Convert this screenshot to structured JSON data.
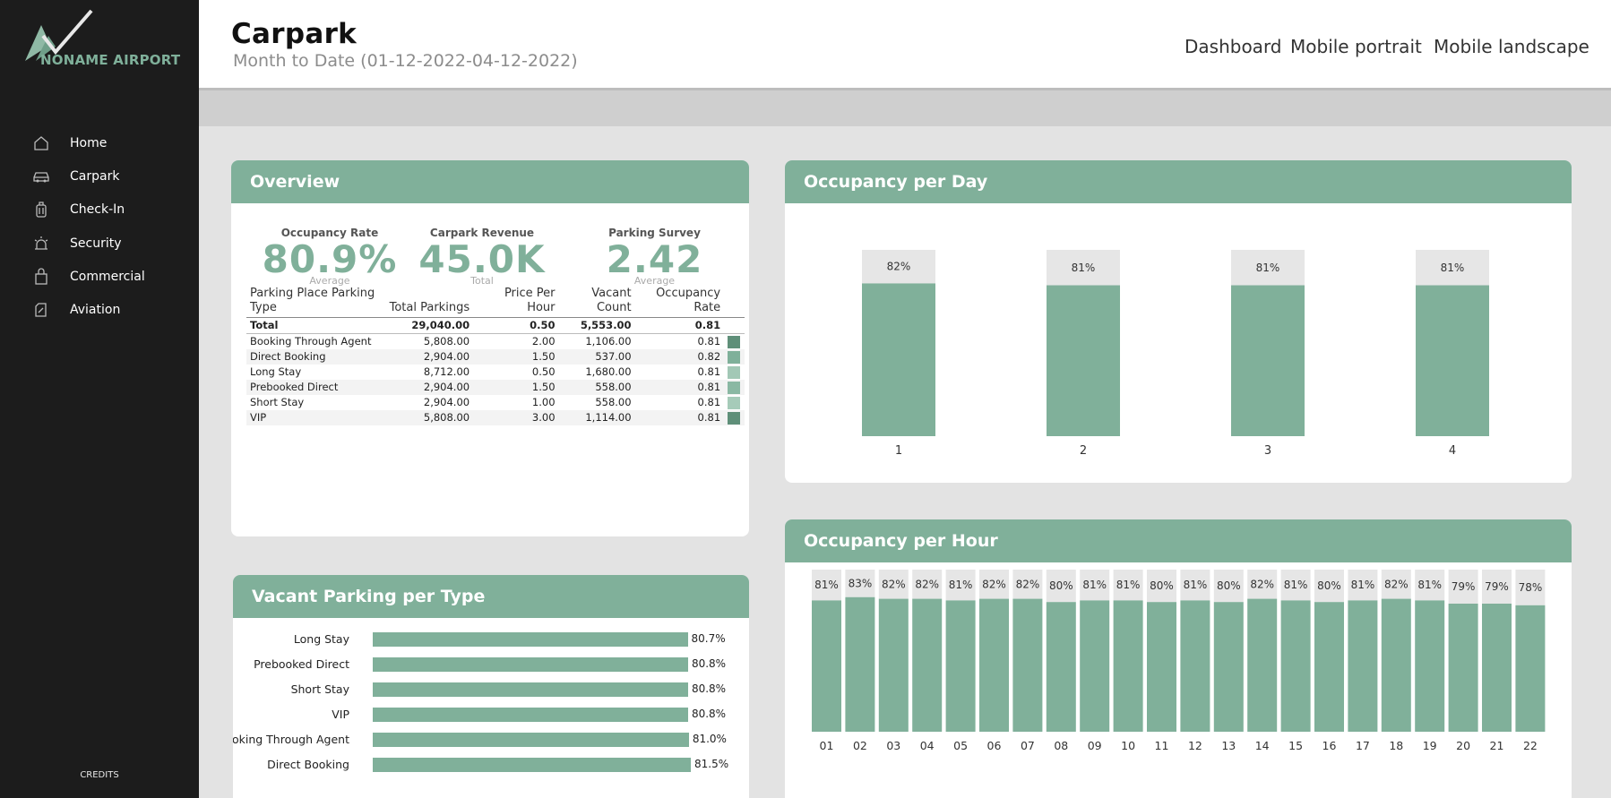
{
  "brand": {
    "logo_text": "NONAME AIRPORT",
    "accent": "#80b09a"
  },
  "sidebar": {
    "items": [
      {
        "label": "Home",
        "icon": "home-icon"
      },
      {
        "label": "Carpark",
        "icon": "car-icon"
      },
      {
        "label": "Check-In",
        "icon": "luggage-icon"
      },
      {
        "label": "Security",
        "icon": "alarm-light-icon"
      },
      {
        "label": "Commercial",
        "icon": "shopping-bag-icon"
      },
      {
        "label": "Aviation",
        "icon": "plane-ticket-icon"
      }
    ],
    "credits": "CREDITS"
  },
  "header": {
    "title": "Carpark",
    "subtitle": "Month to Date (01-12-2022-04-12-2022)",
    "links": [
      "Dashboard",
      "Mobile portrait",
      "Mobile landscape"
    ]
  },
  "overview": {
    "title": "Overview",
    "kpis": [
      {
        "label": "Occupancy Rate",
        "value": "80.9%",
        "sub": "Average"
      },
      {
        "label": "Carpark Revenue",
        "value": "45.0K",
        "sub": "Total"
      },
      {
        "label": "Parking Survey",
        "value": "2.42",
        "sub": "Average"
      }
    ],
    "table": {
      "columns": [
        "Parking Place Parking Type",
        "Total Parkings",
        "Price Per Hour",
        "Vacant Count",
        "Occupancy Rate"
      ],
      "total": [
        "Total",
        "29,040.00",
        "0.50",
        "5,553.00",
        "0.81"
      ],
      "rows": [
        [
          "Booking Through Agent",
          "5,808.00",
          "2.00",
          "1,106.00",
          "0.81"
        ],
        [
          "Direct Booking",
          "2,904.00",
          "1.50",
          "537.00",
          "0.82"
        ],
        [
          "Long Stay",
          "8,712.00",
          "0.50",
          "1,680.00",
          "0.81"
        ],
        [
          "Prebooked Direct",
          "2,904.00",
          "1.50",
          "558.00",
          "0.81"
        ],
        [
          "Short Stay",
          "2,904.00",
          "1.00",
          "558.00",
          "0.81"
        ],
        [
          "VIP",
          "5,808.00",
          "3.00",
          "1,114.00",
          "0.81"
        ]
      ],
      "row_colors": [
        "#5f8f79",
        "#7fb09a",
        "#a2c8b6",
        "#8ab8a3",
        "#a6cbb9",
        "#5f8f79"
      ]
    }
  },
  "vacant": {
    "title": "Vacant Parking per Type",
    "chart_data": {
      "type": "bar",
      "orientation": "horizontal",
      "categories": [
        "Long Stay",
        "Prebooked Direct",
        "Short Stay",
        "VIP",
        "Booking Through Agent",
        "Direct Booking"
      ],
      "values": [
        80.7,
        80.8,
        80.8,
        80.8,
        81.0,
        81.5
      ],
      "labels": [
        "80.7%",
        "80.8%",
        "80.8%",
        "80.8%",
        "81.0%",
        "81.5%"
      ]
    }
  },
  "occ_day": {
    "title": "Occupancy per Day",
    "chart_data": {
      "type": "bar",
      "stacked_100": true,
      "categories": [
        "1",
        "2",
        "3",
        "4"
      ],
      "values": [
        82,
        81,
        81,
        81
      ],
      "labels": [
        "82%",
        "81%",
        "81%",
        "81%"
      ],
      "colors": {
        "occupied": "#80b09a",
        "remainder": "#e6e6e6"
      }
    }
  },
  "occ_hour": {
    "title": "Occupancy per Hour",
    "chart_data": {
      "type": "bar",
      "stacked_100": true,
      "categories": [
        "01",
        "02",
        "03",
        "04",
        "05",
        "06",
        "07",
        "08",
        "09",
        "10",
        "11",
        "12",
        "13",
        "14",
        "15",
        "16",
        "17",
        "18",
        "19",
        "20",
        "21",
        "22"
      ],
      "values": [
        81,
        83,
        82,
        82,
        81,
        82,
        82,
        80,
        81,
        81,
        80,
        81,
        80,
        82,
        81,
        80,
        81,
        82,
        81,
        79,
        79,
        78
      ],
      "labels": [
        "81%",
        "83%",
        "82%",
        "82%",
        "81%",
        "82%",
        "82%",
        "80%",
        "81%",
        "81%",
        "80%",
        "81%",
        "80%",
        "82%",
        "81%",
        "80%",
        "81%",
        "82%",
        "81%",
        "79%",
        "79%",
        "78%"
      ],
      "colors": {
        "occupied": "#80b09a",
        "remainder": "#e6e6e6"
      }
    }
  }
}
